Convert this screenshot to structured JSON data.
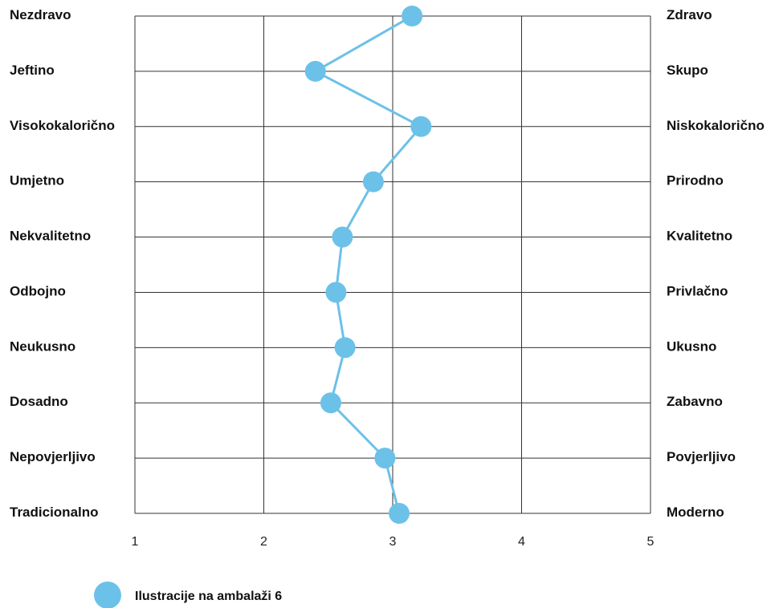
{
  "chart_data": {
    "type": "line",
    "orientation": "semantic-differential",
    "left_labels": [
      "Nezdravo",
      "Jeftino",
      "Visokokalorično",
      "Umjetno",
      "Nekvalitetno",
      "Odbojno",
      "Neukusno",
      "Dosadno",
      "Nepovjerljivo",
      "Tradicionalno"
    ],
    "right_labels": [
      "Zdravo",
      "Skupo",
      "Niskokalorično",
      "Prirodno",
      "Kvalitetno",
      "Privlačno",
      "Ukusno",
      "Zabavno",
      "Povjerljivo",
      "Moderno"
    ],
    "x_ticks": [
      "1",
      "2",
      "3",
      "4",
      "5"
    ],
    "xlim": [
      1,
      5
    ],
    "grid": true,
    "legend_position": "bottom-left",
    "series": [
      {
        "name": "Ilustracije na ambalaži 6",
        "color": "#6cc1e8",
        "values": [
          3.15,
          2.4,
          3.22,
          2.85,
          2.61,
          2.56,
          2.63,
          2.52,
          2.94,
          3.05
        ]
      }
    ]
  }
}
